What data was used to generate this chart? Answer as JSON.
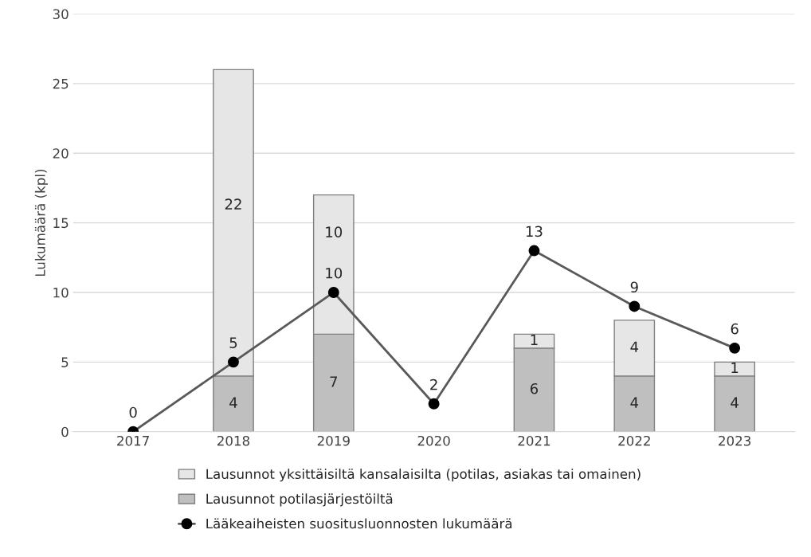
{
  "chart_data": {
    "type": "bar",
    "stacked": true,
    "ylabel": "Lukumäärä (kpl)",
    "categories": [
      "2017",
      "2018",
      "2019",
      "2020",
      "2021",
      "2022",
      "2023"
    ],
    "series": [
      {
        "name": "Lausunnot potilasjärjestöiltä",
        "color": "#bfbfbf",
        "values": [
          null,
          4,
          7,
          null,
          6,
          4,
          4
        ]
      },
      {
        "name": "Lausunnot yksittäisiltä kansalaisilta (potilas, asiakas tai omainen)",
        "color": "#e6e6e6",
        "values": [
          null,
          22,
          10,
          null,
          1,
          4,
          1
        ]
      },
      {
        "name": "Lääkeaiheisten suositusluonnosten lukumäärä",
        "type": "line",
        "color": "#595959",
        "marker": "circle",
        "values": [
          0,
          5,
          10,
          2,
          13,
          9,
          6
        ]
      }
    ],
    "ylim": [
      0,
      30
    ],
    "yticks": [
      0,
      5,
      10,
      15,
      20,
      25,
      30
    ],
    "grid": "y",
    "legend": "bottom",
    "data_labels": true
  }
}
